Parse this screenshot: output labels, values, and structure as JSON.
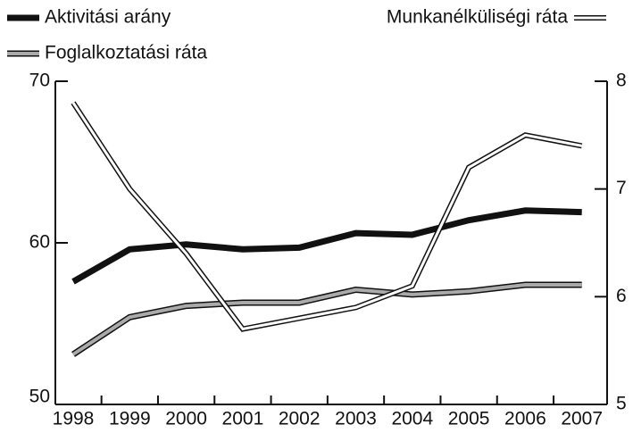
{
  "chart_data": {
    "type": "line",
    "categories": [
      "1998",
      "1999",
      "2000",
      "2001",
      "2002",
      "2003",
      "2004",
      "2005",
      "2006",
      "2007"
    ],
    "series": [
      {
        "name": "Aktivitási arány",
        "color": "#111111",
        "values": [
          57.6,
          59.6,
          59.9,
          59.6,
          59.7,
          60.6,
          60.5,
          61.4,
          62.0,
          61.9
        ]
      },
      {
        "name": "Foglalkoztatási ráta",
        "color": "#aaaaaa",
        "values": [
          53.1,
          55.4,
          56.1,
          56.3,
          56.3,
          57.1,
          56.8,
          57.0,
          57.4,
          57.4
        ]
      },
      {
        "name": "Munkanélküliségi ráta",
        "color": "#ffffff",
        "axis": "y2",
        "values": [
          7.8,
          7.0,
          6.4,
          5.7,
          5.8,
          5.9,
          6.1,
          7.2,
          7.5,
          7.4
        ]
      }
    ],
    "ylim": [
      50,
      70
    ],
    "yticks": [
      50,
      60,
      70
    ],
    "y2lim": [
      5,
      8
    ],
    "y2ticks": [
      5,
      6,
      7,
      8
    ],
    "grid": false
  }
}
